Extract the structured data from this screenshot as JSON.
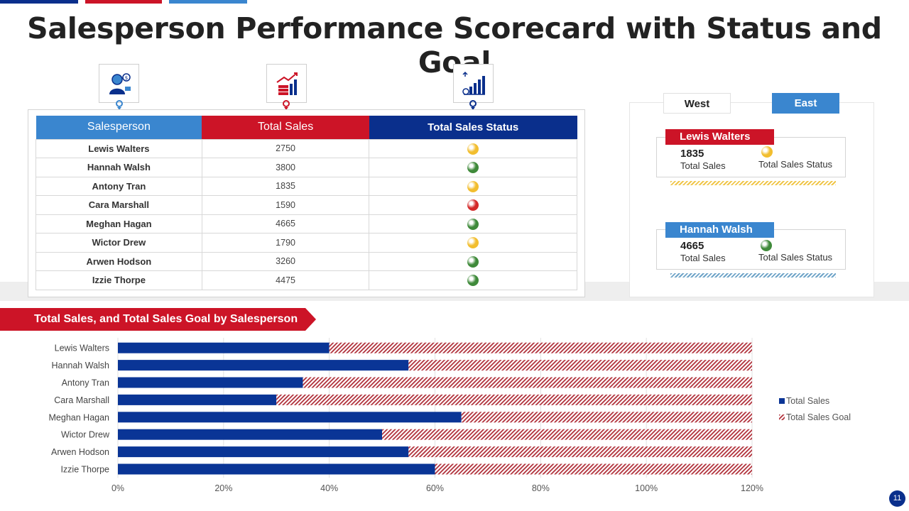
{
  "page": {
    "title": "Salesperson Performance Scorecard with Status and Goal",
    "slide_number": "11"
  },
  "icons": [
    "salesperson-icon",
    "sales-money-icon",
    "growth-chart-icon"
  ],
  "table": {
    "headers": [
      "Salesperson",
      "Total Sales",
      "Total Sales Status"
    ],
    "rows": [
      {
        "name": "Lewis Walters",
        "sales": "2750",
        "status": "yellow"
      },
      {
        "name": "Hannah Walsh",
        "sales": "3800",
        "status": "green"
      },
      {
        "name": "Antony  Tran",
        "sales": "1835",
        "status": "yellow"
      },
      {
        "name": "Cara Marshall",
        "sales": "1590",
        "status": "red"
      },
      {
        "name": "Meghan  Hagan",
        "sales": "4665",
        "status": "green"
      },
      {
        "name": "Wictor Drew",
        "sales": "1790",
        "status": "yellow"
      },
      {
        "name": "Arwen Hodson",
        "sales": "3260",
        "status": "green"
      },
      {
        "name": "Izzie Thorpe",
        "sales": "4475",
        "status": "green"
      }
    ]
  },
  "status_colors": {
    "yellow": "#f2be2f",
    "green": "#3f8a3a",
    "red": "#d42a2a"
  },
  "regions": {
    "tabs": [
      "West",
      "East"
    ],
    "active": "East",
    "cards": [
      {
        "name": "Lewis Walters",
        "value": "1835",
        "value_label": "Total Sales",
        "status_label": "Total Sales Status",
        "status": "yellow",
        "label_color": "#cc1427"
      },
      {
        "name": "Hannah Walsh",
        "value": "4665",
        "value_label": "Total Sales",
        "status_label": "Total Sales Status",
        "status": "green",
        "label_color": "#3a86cf"
      }
    ]
  },
  "section_title": "Total Sales, and Total Sales Goal by Salesperson",
  "chart_data": {
    "type": "bar",
    "orientation": "horizontal",
    "stacked": true,
    "categories": [
      "Lewis Walters",
      "Hannah Walsh",
      "Antony Tran",
      "Cara Marshall",
      "Meghan  Hagan",
      "Wictor Drew",
      "Arwen Hodson",
      "Izzie Thorpe"
    ],
    "series": [
      {
        "name": "Total Sales",
        "values": [
          40,
          55,
          35,
          30,
          65,
          50,
          55,
          60
        ],
        "color": "#0a3596"
      },
      {
        "name": "Total Sales Goal",
        "values": [
          80,
          65,
          85,
          90,
          55,
          70,
          65,
          60
        ],
        "color": "#b0303a",
        "pattern": "hatch"
      }
    ],
    "xlim": [
      0,
      120
    ],
    "ticks": [
      "0%",
      "20%",
      "40%",
      "60%",
      "80%",
      "100%",
      "120%"
    ],
    "legend_position": "right",
    "grid": true
  }
}
